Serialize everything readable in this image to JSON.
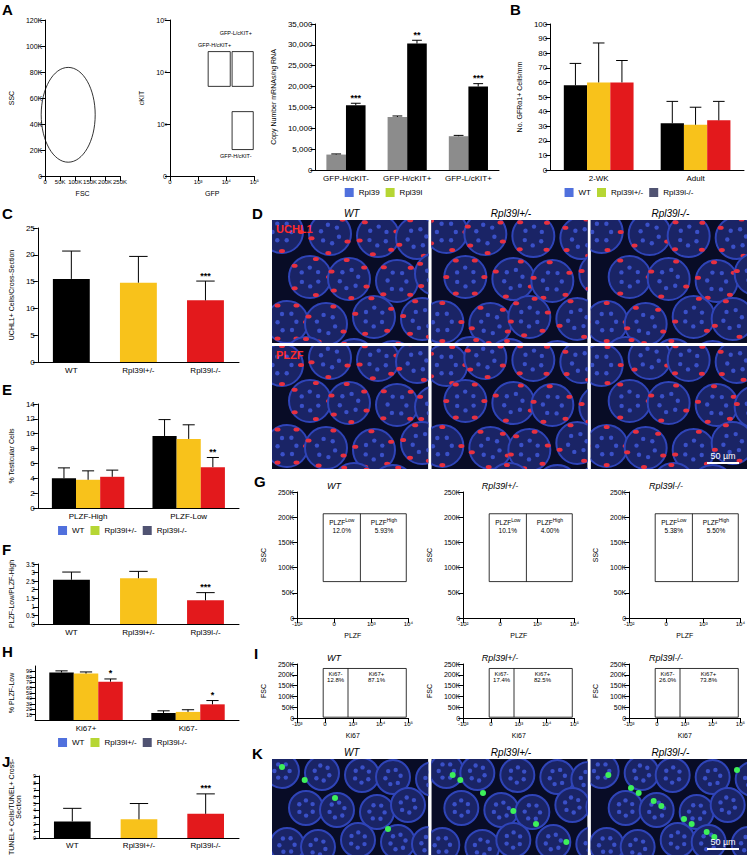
{
  "chart_data": [
    {
      "type": "bar",
      "ylabel": "Copy Number mRNAs/ng RNA",
      "categories": [
        "GFP-H/cKIT-",
        "GFP-H/cKIT+",
        "GFP-L/cKIT+"
      ],
      "series": [
        {
          "name": "Rpl39",
          "color": "#8c8c8c",
          "values": [
            3700,
            12700,
            8100
          ],
          "errors": [
            150,
            250,
            200
          ]
        },
        {
          "name": "Rpl39l",
          "color": "#000000",
          "values": [
            15500,
            30300,
            20000
          ],
          "errors": [
            500,
            800,
            700
          ],
          "significance": [
            "***",
            "**",
            "***"
          ]
        }
      ],
      "ylim": [
        0,
        35000
      ],
      "yticks": [
        0,
        5000,
        10000,
        15000,
        20000,
        25000,
        30000,
        35000
      ],
      "grid": false,
      "legend": "bottom"
    },
    {
      "panel": "B",
      "type": "bar",
      "ylabel": "No. GFRα1+ Cells/mm",
      "categories": [
        "2-WK",
        "Adult"
      ],
      "series": [
        {
          "name": "WT",
          "color": "#000000",
          "values": [
            58,
            32
          ],
          "errors": [
            15,
            15
          ]
        },
        {
          "name": "Rpl39l+/-",
          "color": "#f8c21b",
          "values": [
            60,
            31
          ],
          "errors": [
            27,
            12
          ]
        },
        {
          "name": "Rpl39l-/-",
          "color": "#e3191c",
          "values": [
            60,
            34
          ],
          "errors": [
            15,
            13
          ]
        }
      ],
      "ylim": [
        0,
        100
      ],
      "yticks": [
        0,
        10,
        20,
        30,
        40,
        50,
        60,
        70,
        80,
        90,
        100
      ],
      "grid": false,
      "legend": "bottom"
    },
    {
      "panel": "C",
      "type": "bar",
      "ylabel": "UCHL1+ Cells/Cross-Section",
      "categories": [
        "WT",
        "Rpl39l+/-",
        "Rpl39l-/-"
      ],
      "values": [
        15.5,
        14.8,
        11.5
      ],
      "errors": [
        5.2,
        4.9,
        3.6
      ],
      "significance": [
        null,
        null,
        "***"
      ],
      "colors": [
        "#000000",
        "#f8c21b",
        "#e3191c"
      ],
      "ylim": [
        0,
        25
      ],
      "yticks": [
        0,
        5,
        10,
        15,
        20,
        25
      ],
      "grid": false
    },
    {
      "panel": "E",
      "type": "bar",
      "ylabel": "% Testicular Cells",
      "categories": [
        "PLZF-High",
        "PLZF-Low"
      ],
      "series": [
        {
          "name": "WT",
          "color": "#000000",
          "values": [
            4.0,
            9.7
          ],
          "errors": [
            1.4,
            2.2
          ]
        },
        {
          "name": "Rpl39l+/-",
          "color": "#f8c21b",
          "values": [
            3.8,
            9.3
          ],
          "errors": [
            1.2,
            1.9
          ]
        },
        {
          "name": "Rpl39l-/-",
          "color": "#e3191c",
          "values": [
            4.2,
            5.5
          ],
          "errors": [
            0.9,
            1.3
          ],
          "significance": [
            null,
            "**"
          ]
        }
      ],
      "ylim": [
        0,
        14
      ],
      "yticks": [
        0,
        2,
        4,
        6,
        8,
        10,
        12,
        14
      ],
      "grid": false,
      "legend": "bottom"
    },
    {
      "panel": "F",
      "type": "bar",
      "ylabel": "PLZF-Low/PLZF-High",
      "categories": [
        "WT",
        "Rpl39l+/-",
        "Rpl39l-/-"
      ],
      "values": [
        2.58,
        2.67,
        1.38
      ],
      "errors": [
        0.45,
        0.4,
        0.45
      ],
      "significance": [
        null,
        null,
        "***"
      ],
      "colors": [
        "#000000",
        "#f8c21b",
        "#e3191c"
      ],
      "ylim": [
        0,
        3.5
      ],
      "yticks": [
        0,
        0.5,
        1,
        1.5,
        2,
        2.5,
        3,
        3.5
      ],
      "grid": false
    },
    {
      "panel": "H",
      "type": "bar",
      "ylabel": "% PLZF-Low",
      "categories": [
        "Ki67+",
        "Ki67-"
      ],
      "series": [
        {
          "name": "WT",
          "color": "#000000",
          "values": [
            88,
            13
          ],
          "errors": [
            3,
            4
          ]
        },
        {
          "name": "Rpl39l+/-",
          "color": "#f8c21b",
          "values": [
            86,
            15
          ],
          "errors": [
            3,
            4
          ]
        },
        {
          "name": "Rpl39l-/-",
          "color": "#e3191c",
          "values": [
            71,
            29
          ],
          "errors": [
            5,
            7
          ],
          "significance": [
            "*",
            "*"
          ]
        }
      ],
      "ylim": [
        0,
        100
      ],
      "yticks": [
        0,
        10,
        20,
        30,
        40,
        50,
        60,
        70,
        80,
        90,
        100
      ],
      "grid": false,
      "legend": "bottom"
    },
    {
      "panel": "J",
      "type": "bar",
      "ylabel": "TUNEL+ Cells/TUNEL+ Cross-\nSection",
      "categories": [
        "WT",
        "Rpl39l+/-",
        "Rpl39l-/-"
      ],
      "values": [
        2.4,
        2.7,
        3.5
      ],
      "errors": [
        1.9,
        2.3,
        2.9
      ],
      "significance": [
        null,
        null,
        "***"
      ],
      "colors": [
        "#000000",
        "#f8c21b",
        "#e3191c"
      ],
      "ylim": [
        0,
        9
      ],
      "yticks": [
        0,
        1,
        2,
        3,
        4,
        5,
        6,
        7,
        8,
        9
      ],
      "grid": false
    }
  ],
  "flow_plots": [
    {
      "panel": "A",
      "xlabel": "FSC",
      "ylabel": "SSC",
      "xticks": [
        "0",
        "50K",
        "100K",
        "150K",
        "200K",
        "250K"
      ],
      "yticks": [
        "0",
        "20K",
        "40K",
        "60K",
        "80K",
        "100K",
        "120K"
      ],
      "gates": []
    },
    {
      "xlabel": "GFP",
      "ylabel": "cKIT",
      "xticks": [
        "0",
        "10³",
        "10⁴",
        "10⁵"
      ],
      "yticks": [
        "0",
        "10³",
        "10⁴",
        "10⁵"
      ],
      "gates": [
        {
          "label": "GFP-H/cKIT+"
        },
        {
          "label": "GFP-L/cKIT+"
        },
        {
          "label": "GFP-H/cKIT-"
        }
      ]
    },
    {
      "panel": "G",
      "title": "WT",
      "xlabel": "PLZF",
      "ylabel": "SSC",
      "xticks": [
        "-10²",
        "0",
        "10³",
        "10⁴"
      ],
      "yticks": [
        "0",
        "50K",
        "100K",
        "150K",
        "200K",
        "250K"
      ],
      "gates": [
        {
          "label": "PLZF",
          "sup": "Low",
          "pct": "12.0%"
        },
        {
          "label": "PLZF",
          "sup": "High",
          "pct": "5.93%"
        }
      ]
    },
    {
      "title": "Rpl39l+/-",
      "xlabel": "PLZF",
      "ylabel": "SSC",
      "xticks": [
        "-10²",
        "0",
        "10³",
        "10⁴"
      ],
      "yticks": [
        "0",
        "50K",
        "100K",
        "150K",
        "200K",
        "250K"
      ],
      "gates": [
        {
          "label": "PLZF",
          "sup": "Low",
          "pct": "10.1%"
        },
        {
          "label": "PLZF",
          "sup": "High",
          "pct": "4.00%"
        }
      ]
    },
    {
      "title": "Rpl39l-/-",
      "xlabel": "PLZF",
      "ylabel": "SSC",
      "xticks": [
        "-10²",
        "0",
        "10³",
        "10⁴"
      ],
      "yticks": [
        "0",
        "50K",
        "100K",
        "150K",
        "200K",
        "250K"
      ],
      "gates": [
        {
          "label": "PLZF",
          "sup": "Low",
          "pct": "5.38%"
        },
        {
          "label": "PLZF",
          "sup": "High",
          "pct": "5.50%"
        }
      ]
    },
    {
      "panel": "I",
      "title": "WT",
      "xlabel": "Ki67",
      "ylabel": "FSC",
      "xticks": [
        "-10³",
        "0",
        "10³",
        "10⁴",
        "10⁵"
      ],
      "yticks": [
        "0",
        "50K",
        "100K",
        "150K",
        "200K",
        "250K"
      ],
      "gates": [
        {
          "label": "Ki67-",
          "pct": "12.8%"
        },
        {
          "label": "Ki67+",
          "pct": "87.1%"
        }
      ]
    },
    {
      "title": "Rpl39l+/-",
      "xlabel": "Ki67",
      "ylabel": "FSC",
      "xticks": [
        "-10³",
        "0",
        "10³",
        "10⁴",
        "10⁵"
      ],
      "yticks": [
        "0",
        "50K",
        "100K",
        "150K",
        "200K",
        "250K"
      ],
      "gates": [
        {
          "label": "Ki67-",
          "pct": "17.4%"
        },
        {
          "label": "Ki67+",
          "pct": "82.5%"
        }
      ]
    },
    {
      "title": "Rpl39l-/-",
      "xlabel": "Ki67",
      "ylabel": "FSC",
      "xticks": [
        "-10³",
        "0",
        "10³",
        "10⁴",
        "10⁵"
      ],
      "yticks": [
        "0",
        "50K",
        "100K",
        "150K",
        "200K",
        "250K"
      ],
      "gates": [
        {
          "label": "Ki67-",
          "pct": "26.0%"
        },
        {
          "label": "Ki67+",
          "pct": "73.8%"
        }
      ]
    }
  ],
  "images": [
    {
      "panel": "D",
      "columns": [
        "WT",
        "Rpl39l+/-",
        "Rpl39l-/-"
      ],
      "rows": [
        "UCHL1",
        "PLZF"
      ],
      "scale": "50 µm"
    },
    {
      "panel": "K",
      "columns": [
        "WT",
        "Rpl39l+/-",
        "Rpl39l-/-"
      ],
      "scale": "50 µm"
    }
  ]
}
